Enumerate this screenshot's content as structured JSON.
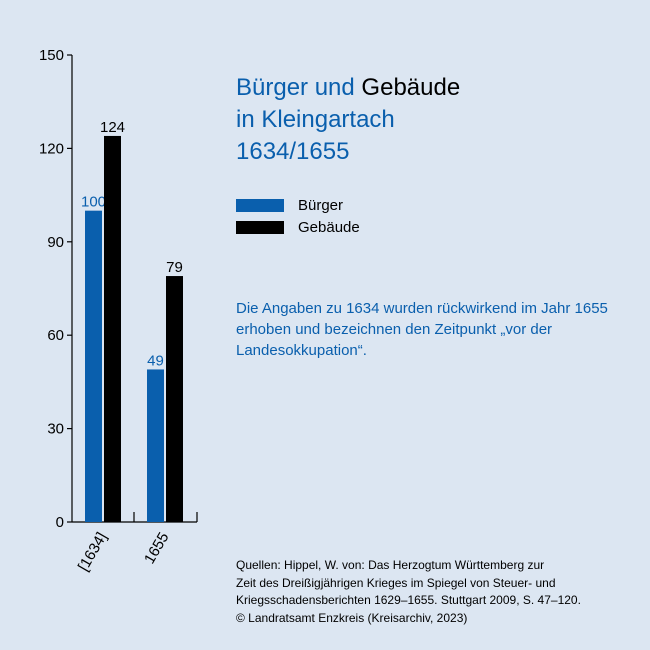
{
  "title": {
    "part1": "Bürger und",
    "part2": "Gebäude",
    "line2": "in Kleingartach",
    "line3": "1634/1655"
  },
  "legend": [
    {
      "label": "Bürger",
      "color": "#0a5fad"
    },
    {
      "label": "Gebäude",
      "color": "#000000"
    }
  ],
  "note": "Die Angaben zu 1634 wurden rückwirkend im Jahr 1655 erhoben und bezeichnen den Zeitpunkt „vor der Landesokkupation“.",
  "source": {
    "line1": "Quellen: Hippel, W. von: Das Herzogtum Württemberg zur",
    "line2": "Zeit des Dreißigjährigen Krieges im Spiegel von Steuer- und",
    "line3": "Kriegsschadensberichten 1629–1655. Stuttgart 2009, S. 47–120.",
    "line4": "© Landratsamt Enzkreis (Kreisarchiv, 2023)"
  },
  "chart_data": {
    "type": "bar",
    "categories": [
      "[1634]",
      "1655"
    ],
    "series": [
      {
        "name": "Bürger",
        "values": [
          100,
          49
        ],
        "color": "#0a5fad"
      },
      {
        "name": "Gebäude",
        "values": [
          124,
          79
        ],
        "color": "#000000"
      }
    ],
    "ylim": [
      0,
      150
    ],
    "yticks": [
      0,
      30,
      60,
      90,
      120,
      150
    ],
    "legend_position": "right"
  }
}
